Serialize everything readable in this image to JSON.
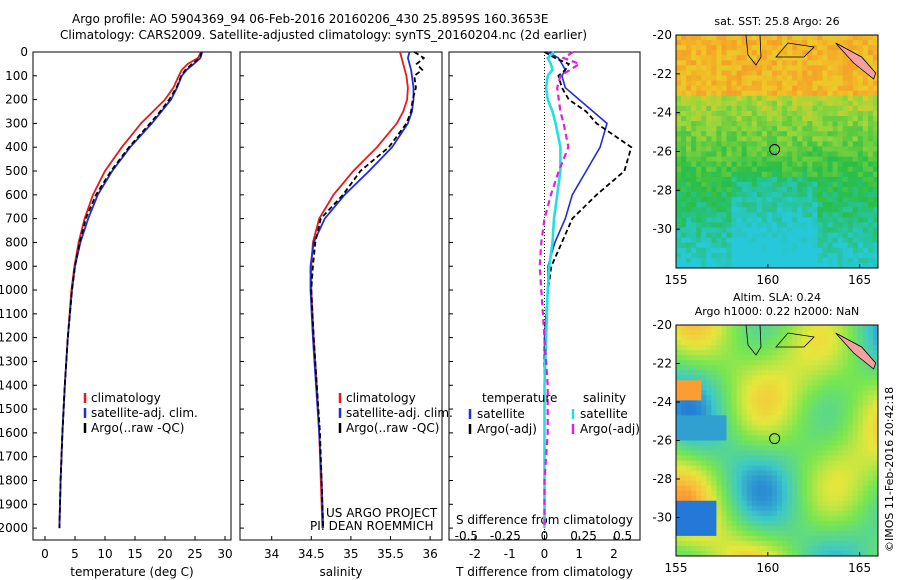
{
  "header": {
    "line1": "Argo profile: AO 5904369_94 06-Feb-2016 20160206_430 25.8959S 160.3653E",
    "line2": "Climatology: CARS2009. Satellite-adjusted climatology: synTS_20160204.nc (2d earlier)"
  },
  "colors": {
    "climatology": "#e41a1c",
    "satellite": "#1f2fd0",
    "argo": "#000000",
    "cyan": "#22e0e0",
    "magenta": "#e020e0"
  },
  "chart_data": [
    {
      "type": "line",
      "title": "",
      "xlabel": "temperature (deg C)",
      "ylabel": "",
      "xlim": [
        -2,
        31
      ],
      "ylim": [
        2050,
        0
      ],
      "xticks": [
        "0",
        "5",
        "10",
        "15",
        "20",
        "25",
        "30"
      ],
      "yticks": [
        "0",
        "100",
        "200",
        "300",
        "400",
        "500",
        "600",
        "700",
        "800",
        "900",
        "1000",
        "1100",
        "1200",
        "1300",
        "1400",
        "1500",
        "1600",
        "1700",
        "1800",
        "1900",
        "2000"
      ],
      "legend": [
        "climatology",
        "satellite-adj. clim.",
        "Argo(..raw -QC)"
      ],
      "series": [
        {
          "name": "climatology",
          "depth": [
            0,
            25,
            50,
            75,
            100,
            150,
            200,
            250,
            300,
            400,
            500,
            600,
            700,
            800,
            900,
            1000,
            1200,
            1400,
            1600,
            1800,
            2000
          ],
          "values": [
            26.0,
            25.5,
            23.8,
            22.8,
            22.3,
            21.4,
            20.0,
            18.0,
            16.0,
            12.8,
            10.0,
            8.0,
            6.6,
            5.6,
            4.9,
            4.4,
            3.8,
            3.3,
            2.9,
            2.6,
            2.4
          ]
        },
        {
          "name": "satellite-adj. clim.",
          "depth": [
            0,
            25,
            50,
            75,
            100,
            150,
            200,
            250,
            300,
            400,
            500,
            600,
            700,
            800,
            900,
            1000,
            1200,
            1400,
            1600,
            1800,
            2000
          ],
          "values": [
            26.2,
            25.9,
            24.8,
            23.6,
            22.8,
            22.0,
            21.0,
            19.4,
            17.8,
            14.2,
            11.2,
            8.8,
            7.2,
            5.9,
            5.0,
            4.5,
            3.8,
            3.3,
            2.9,
            2.6,
            2.4
          ]
        },
        {
          "name": "Argo(..raw -QC)",
          "depth": [
            0,
            25,
            50,
            75,
            100,
            150,
            200,
            250,
            300,
            400,
            500,
            600,
            700,
            800,
            900,
            1000,
            1200,
            1400,
            1600,
            1800,
            2000
          ],
          "values": [
            26.1,
            25.8,
            24.5,
            23.4,
            22.7,
            21.9,
            20.7,
            19.2,
            17.5,
            14.0,
            11.0,
            8.5,
            6.8,
            5.8,
            5.0,
            4.5,
            3.8,
            3.3,
            2.9,
            2.6,
            2.4
          ]
        }
      ]
    },
    {
      "type": "line",
      "xlabel": "salinity",
      "xlim": [
        33.6,
        36.15
      ],
      "ylim": [
        2050,
        0
      ],
      "xticks": [
        "34",
        "34.5",
        "35",
        "35.5",
        "36"
      ],
      "legend": [
        "climatology",
        "satellite-adj. clim.",
        "Argo(..raw -QC)"
      ],
      "annotation": [
        "US ARGO PROJECT",
        "PI: DEAN ROEMMICH"
      ],
      "series": [
        {
          "name": "climatology",
          "depth": [
            0,
            25,
            50,
            75,
            100,
            150,
            200,
            250,
            300,
            400,
            500,
            600,
            700,
            800,
            900,
            1000,
            1200,
            1400,
            1600,
            1800,
            2000
          ],
          "values": [
            35.62,
            35.64,
            35.66,
            35.68,
            35.7,
            35.72,
            35.71,
            35.66,
            35.58,
            35.33,
            35.03,
            34.78,
            34.6,
            34.52,
            34.5,
            34.5,
            34.53,
            34.57,
            34.6,
            34.62,
            34.64
          ]
        },
        {
          "name": "satellite-adj. clim.",
          "depth": [
            0,
            25,
            50,
            75,
            100,
            150,
            200,
            250,
            300,
            400,
            500,
            600,
            700,
            800,
            900,
            1000,
            1200,
            1400,
            1600,
            1800,
            2000
          ],
          "values": [
            35.74,
            35.72,
            35.74,
            35.76,
            35.77,
            35.79,
            35.79,
            35.77,
            35.72,
            35.52,
            35.23,
            34.92,
            34.67,
            34.53,
            34.49,
            34.49,
            34.52,
            34.56,
            34.6,
            34.63,
            34.65
          ]
        },
        {
          "name": "Argo(..raw -QC)",
          "depth": [
            0,
            25,
            50,
            75,
            100,
            150,
            200,
            250,
            300,
            400,
            500,
            600,
            700,
            800,
            900,
            1000,
            1200,
            1400,
            1600,
            1800,
            2000
          ],
          "values": [
            35.8,
            35.92,
            35.83,
            35.9,
            35.8,
            35.82,
            35.78,
            35.76,
            35.7,
            35.48,
            35.12,
            34.9,
            34.62,
            34.55,
            34.52,
            34.5,
            34.53,
            34.57,
            34.61,
            34.63,
            34.65
          ]
        }
      ]
    },
    {
      "type": "line",
      "xlabel": "T difference from climatology",
      "xlabel_top": "S difference from climatology",
      "xlim": [
        -2.75,
        2.75
      ],
      "ylim": [
        2050,
        0
      ],
      "xticks": [
        "-2",
        "-1",
        "0",
        "1",
        "2"
      ],
      "xticks_s": [
        "-0.5",
        "-0.25",
        "0",
        "0.25",
        "0.5"
      ],
      "legend_temperature": "temperature",
      "legend_salinity": "salinity",
      "legend": [
        "satellite",
        "Argo(-adj)",
        "satellite",
        "Argo(-adj)"
      ],
      "series": [
        {
          "name": "temperature satellite",
          "depth": [
            0,
            25,
            50,
            75,
            100,
            150,
            200,
            250,
            300,
            400,
            500,
            600,
            700,
            800,
            900,
            1000,
            1200,
            1400,
            1600,
            1800,
            2000
          ],
          "values": [
            0.1,
            0.4,
            0.5,
            0.6,
            0.5,
            0.6,
            1.0,
            1.4,
            1.8,
            1.6,
            1.2,
            0.8,
            0.6,
            0.3,
            0.1,
            0.1,
            0.0,
            0.0,
            0.0,
            0.0,
            0.0
          ]
        },
        {
          "name": "temperature Argo(-adj)",
          "depth": [
            0,
            25,
            50,
            75,
            100,
            150,
            200,
            250,
            300,
            400,
            500,
            600,
            700,
            800,
            900,
            1000,
            1200,
            1400,
            1600,
            1800,
            2000
          ],
          "values": [
            0.0,
            0.3,
            0.7,
            0.6,
            0.4,
            0.5,
            0.7,
            1.2,
            1.5,
            2.5,
            2.3,
            1.5,
            0.8,
            0.5,
            0.2,
            0.1,
            0.0,
            0.0,
            0.0,
            0.0,
            0.0
          ]
        },
        {
          "name": "salinity satellite",
          "depth": [
            0,
            25,
            50,
            75,
            100,
            150,
            200,
            250,
            300,
            400,
            500,
            600,
            700,
            800,
            900,
            1000,
            1200,
            1400,
            1600,
            1800,
            2000
          ],
          "values": [
            0.06,
            0.02,
            0.04,
            0.05,
            0.02,
            0.01,
            0.02,
            0.05,
            0.07,
            0.1,
            0.1,
            0.08,
            0.06,
            0.05,
            0.03,
            0.02,
            0.01,
            0.0,
            0.0,
            0.0,
            0.0
          ]
        },
        {
          "name": "salinity Argo(-adj)",
          "depth": [
            0,
            25,
            50,
            75,
            100,
            150,
            200,
            250,
            300,
            400,
            500,
            600,
            700,
            800,
            900,
            1000,
            1200,
            1400,
            1600,
            1800,
            2000
          ],
          "values": [
            0.18,
            0.12,
            0.22,
            0.16,
            0.1,
            0.08,
            0.09,
            0.1,
            0.12,
            0.15,
            0.09,
            0.04,
            0.0,
            -0.02,
            -0.03,
            -0.02,
            0.0,
            0.02,
            0.02,
            0.0,
            0.0
          ]
        }
      ]
    },
    {
      "type": "heatmap",
      "title": "sat. SST: 25.8 Argo: 26",
      "xlim": [
        155,
        166
      ],
      "ylim": [
        -32,
        -20
      ],
      "xticks": [
        "155",
        "160",
        "165"
      ],
      "yticks": [
        "-20",
        "-22",
        "-24",
        "-26",
        "-28",
        "-30"
      ],
      "marker": {
        "lon": 160.37,
        "lat": -25.9
      }
    },
    {
      "type": "heatmap",
      "title": "Altim. SLA: 0.24",
      "subtitle": "Argo h1000: 0.22 h2000: NaN",
      "xlim": [
        155,
        166
      ],
      "ylim": [
        -32,
        -20
      ],
      "xticks": [
        "155",
        "160",
        "165"
      ],
      "yticks": [
        "-20",
        "-22",
        "-24",
        "-26",
        "-28",
        "-30"
      ],
      "marker": {
        "lon": 160.37,
        "lat": -25.9
      }
    }
  ],
  "credit": "©IMOS 11-Feb-2016 20:42:18"
}
